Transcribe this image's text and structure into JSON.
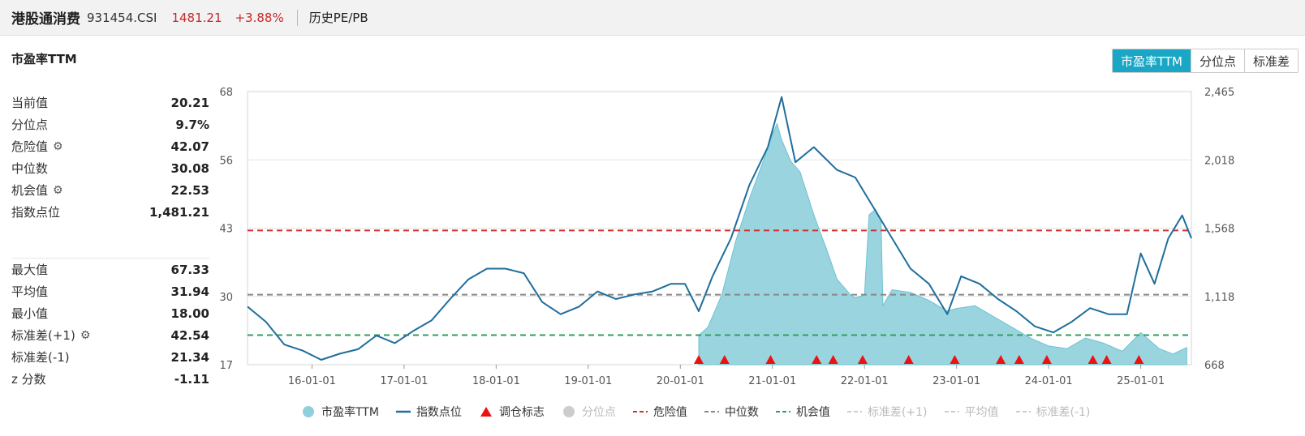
{
  "header": {
    "name": "港股通消费",
    "code": "931454.CSI",
    "price": "1481.21",
    "change": "+3.88%",
    "history_link": "历史PE/PB"
  },
  "panel": {
    "title": "市盈率TTM"
  },
  "toggle": {
    "items": [
      "市盈率TTM",
      "分位点",
      "标准差"
    ],
    "active": 0
  },
  "stats": {
    "group1": [
      {
        "label": "当前值",
        "value": "20.21",
        "gear": false
      },
      {
        "label": "分位点",
        "value": "9.7%",
        "gear": false
      },
      {
        "label": "危险值",
        "value": "42.07",
        "gear": true
      },
      {
        "label": "中位数",
        "value": "30.08",
        "gear": false
      },
      {
        "label": "机会值",
        "value": "22.53",
        "gear": true
      },
      {
        "label": "指数点位",
        "value": "1,481.21",
        "gear": false
      }
    ],
    "group2": [
      {
        "label": "最大值",
        "value": "67.33",
        "gear": false
      },
      {
        "label": "平均值",
        "value": "31.94",
        "gear": false
      },
      {
        "label": "最小值",
        "value": "18.00",
        "gear": false
      },
      {
        "label": "标准差(+1)",
        "value": "42.54",
        "gear": true
      },
      {
        "label": "标准差(-1)",
        "value": "21.34",
        "gear": false
      },
      {
        "label": "z 分数",
        "value": "-1.11",
        "gear": false
      }
    ]
  },
  "colors": {
    "pe_fill": "#8fd0dc",
    "index_line": "#1f6e9c",
    "danger": "#d32f2f",
    "median": "#888888",
    "opportunity": "#2e9e5b",
    "rebalance": "#ee1111",
    "accent": "#1aa7c5"
  },
  "chart_data": {
    "type": "line",
    "x_ticks": [
      "16-01-01",
      "17-01-01",
      "18-01-01",
      "19-01-01",
      "20-01-01",
      "21-01-01",
      "22-01-01",
      "23-01-01",
      "24-01-01",
      "25-01-01"
    ],
    "x_range": [
      2015.3,
      2025.55
    ],
    "y_left_ticks": [
      "68",
      "56",
      "43",
      "30",
      "17"
    ],
    "y_left_range": [
      17,
      68
    ],
    "y_right_ticks": [
      "2,465",
      "2,018",
      "1,568",
      "1,118",
      "668"
    ],
    "y_right_range": [
      668,
      2465
    ],
    "reference_lines": [
      {
        "name": "危险值",
        "value": 42.07,
        "style": "dashed"
      },
      {
        "name": "中位数",
        "value": 30.08,
        "style": "dashed"
      },
      {
        "name": "机会值",
        "value": 22.53,
        "style": "dashed"
      }
    ],
    "series": [
      {
        "name": "市盈率TTM",
        "kind": "area",
        "x": [
          2020.2,
          2020.3,
          2020.45,
          2020.6,
          2020.75,
          2020.9,
          2021.0,
          2021.05,
          2021.1,
          2021.2,
          2021.3,
          2021.45,
          2021.6,
          2021.7,
          2021.8,
          2021.85,
          2021.9,
          2022.0,
          2022.05,
          2022.12,
          2022.18,
          2022.2,
          2022.3,
          2022.5,
          2022.7,
          2022.9,
          2023.0,
          2023.2,
          2023.4,
          2023.6,
          2023.8,
          2024.0,
          2024.2,
          2024.4,
          2024.6,
          2024.8,
          2025.0,
          2025.2,
          2025.35,
          2025.5
        ],
        "values": [
          22.5,
          24,
          30,
          40,
          48,
          55,
          60,
          62,
          59,
          55,
          53,
          45,
          38,
          33,
          31,
          30,
          29.5,
          30,
          45,
          46,
          44,
          28,
          31,
          30.5,
          29,
          27,
          27.5,
          28,
          26,
          24,
          22,
          20.5,
          20,
          22,
          21,
          19.5,
          23,
          20,
          19,
          20.2
        ]
      },
      {
        "name": "指数点位",
        "kind": "line",
        "x": [
          2015.3,
          2015.5,
          2015.7,
          2015.9,
          2016.1,
          2016.3,
          2016.5,
          2016.7,
          2016.9,
          2017.1,
          2017.3,
          2017.5,
          2017.7,
          2017.9,
          2018.1,
          2018.3,
          2018.5,
          2018.7,
          2018.9,
          2019.1,
          2019.3,
          2019.5,
          2019.7,
          2019.9,
          2020.05,
          2020.2,
          2020.35,
          2020.55,
          2020.75,
          2020.95,
          2021.1,
          2021.25,
          2021.45,
          2021.7,
          2021.9,
          2022.1,
          2022.3,
          2022.5,
          2022.7,
          2022.9,
          2023.05,
          2023.25,
          2023.45,
          2023.65,
          2023.85,
          2024.05,
          2024.25,
          2024.45,
          2024.65,
          2024.85,
          2025.0,
          2025.15,
          2025.3,
          2025.45,
          2025.55
        ],
        "values": [
          1050,
          950,
          800,
          760,
          700,
          740,
          770,
          860,
          810,
          890,
          960,
          1100,
          1230,
          1300,
          1300,
          1270,
          1080,
          1000,
          1050,
          1150,
          1100,
          1130,
          1150,
          1200,
          1200,
          1020,
          1250,
          1500,
          1850,
          2100,
          2430,
          2000,
          2100,
          1950,
          1900,
          1700,
          1500,
          1300,
          1200,
          1000,
          1250,
          1200,
          1100,
          1020,
          920,
          880,
          950,
          1040,
          1000,
          1000,
          1400,
          1200,
          1500,
          1650,
          1500
        ]
      }
    ],
    "rebalance_markers_x": [
      2020.2,
      2020.48,
      2020.98,
      2021.48,
      2021.66,
      2021.98,
      2022.48,
      2022.98,
      2023.48,
      2023.68,
      2023.98,
      2024.48,
      2024.63,
      2024.98
    ],
    "legend": [
      {
        "label": "市盈率TTM",
        "symbol": "circle",
        "color": "#8fd0dc",
        "dim": false
      },
      {
        "label": "指数点位",
        "symbol": "line",
        "color": "#1f6e9c",
        "dim": false
      },
      {
        "label": "调仓标志",
        "symbol": "triangle",
        "color": "#ee1111",
        "dim": false
      },
      {
        "label": "分位点",
        "symbol": "circle",
        "color": "#cccccc",
        "dim": true
      },
      {
        "label": "危险值",
        "symbol": "dash",
        "color": "#d32f2f",
        "dim": false
      },
      {
        "label": "中位数",
        "symbol": "dash",
        "color": "#888888",
        "dim": false
      },
      {
        "label": "机会值",
        "symbol": "dash",
        "color": "#2e9e5b",
        "dim": false
      },
      {
        "label": "标准差(+1)",
        "symbol": "dash",
        "color": "#cccccc",
        "dim": true
      },
      {
        "label": "平均值",
        "symbol": "dash",
        "color": "#cccccc",
        "dim": true
      },
      {
        "label": "标准差(-1)",
        "symbol": "dash",
        "color": "#cccccc",
        "dim": true
      }
    ]
  }
}
